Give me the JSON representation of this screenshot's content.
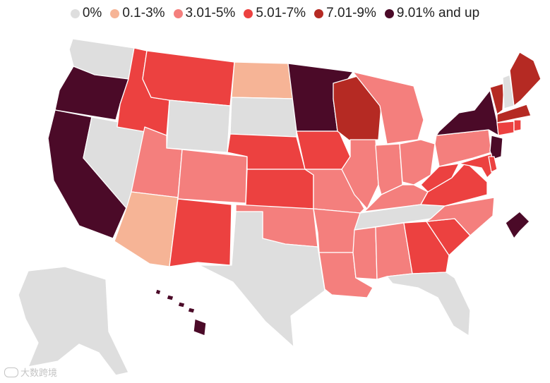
{
  "legend": {
    "items": [
      {
        "label": "0%",
        "color": "#dedede"
      },
      {
        "label": "0.1-3%",
        "color": "#f6b496"
      },
      {
        "label": "3.01-5%",
        "color": "#f47f7d"
      },
      {
        "label": "5.01-7%",
        "color": "#ec4140"
      },
      {
        "label": "7.01-9%",
        "color": "#b52a23"
      },
      {
        "label": "9.01% and up",
        "color": "#4b0a28"
      }
    ]
  },
  "watermark": {
    "logo_text": "大数跨境"
  },
  "states": [
    {
      "code": "WA",
      "bin": 0
    },
    {
      "code": "OR",
      "bin": 5
    },
    {
      "code": "CA",
      "bin": 5
    },
    {
      "code": "NV",
      "bin": 0
    },
    {
      "code": "ID",
      "bin": 3
    },
    {
      "code": "MT",
      "bin": 3
    },
    {
      "code": "WY",
      "bin": 0
    },
    {
      "code": "UT",
      "bin": 2
    },
    {
      "code": "AZ",
      "bin": 1
    },
    {
      "code": "CO",
      "bin": 2
    },
    {
      "code": "NM",
      "bin": 3
    },
    {
      "code": "ND",
      "bin": 1
    },
    {
      "code": "SD",
      "bin": 0
    },
    {
      "code": "NE",
      "bin": 3
    },
    {
      "code": "KS",
      "bin": 3
    },
    {
      "code": "OK",
      "bin": 2
    },
    {
      "code": "TX",
      "bin": 0
    },
    {
      "code": "MN",
      "bin": 5
    },
    {
      "code": "IA",
      "bin": 3
    },
    {
      "code": "MO",
      "bin": 2
    },
    {
      "code": "AR",
      "bin": 2
    },
    {
      "code": "LA",
      "bin": 2
    },
    {
      "code": "WI",
      "bin": 4
    },
    {
      "code": "IL",
      "bin": 2
    },
    {
      "code": "MI",
      "bin": 2
    },
    {
      "code": "IN",
      "bin": 2
    },
    {
      "code": "OH",
      "bin": 2
    },
    {
      "code": "KY",
      "bin": 2
    },
    {
      "code": "TN",
      "bin": 0
    },
    {
      "code": "MS",
      "bin": 2
    },
    {
      "code": "AL",
      "bin": 2
    },
    {
      "code": "GA",
      "bin": 3
    },
    {
      "code": "FL",
      "bin": 0
    },
    {
      "code": "SC",
      "bin": 3
    },
    {
      "code": "NC",
      "bin": 2
    },
    {
      "code": "VA",
      "bin": 3
    },
    {
      "code": "WV",
      "bin": 3
    },
    {
      "code": "PA",
      "bin": 2
    },
    {
      "code": "NY",
      "bin": 5
    },
    {
      "code": "NJ",
      "bin": 5
    },
    {
      "code": "MD",
      "bin": 3
    },
    {
      "code": "DE",
      "bin": 3
    },
    {
      "code": "VT",
      "bin": 4
    },
    {
      "code": "NH",
      "bin": 0
    },
    {
      "code": "ME",
      "bin": 4
    },
    {
      "code": "MA",
      "bin": 4
    },
    {
      "code": "CT",
      "bin": 3
    },
    {
      "code": "RI",
      "bin": 3
    },
    {
      "code": "DC",
      "bin": 5
    },
    {
      "code": "AK",
      "bin": 0
    },
    {
      "code": "HI",
      "bin": 5
    }
  ]
}
